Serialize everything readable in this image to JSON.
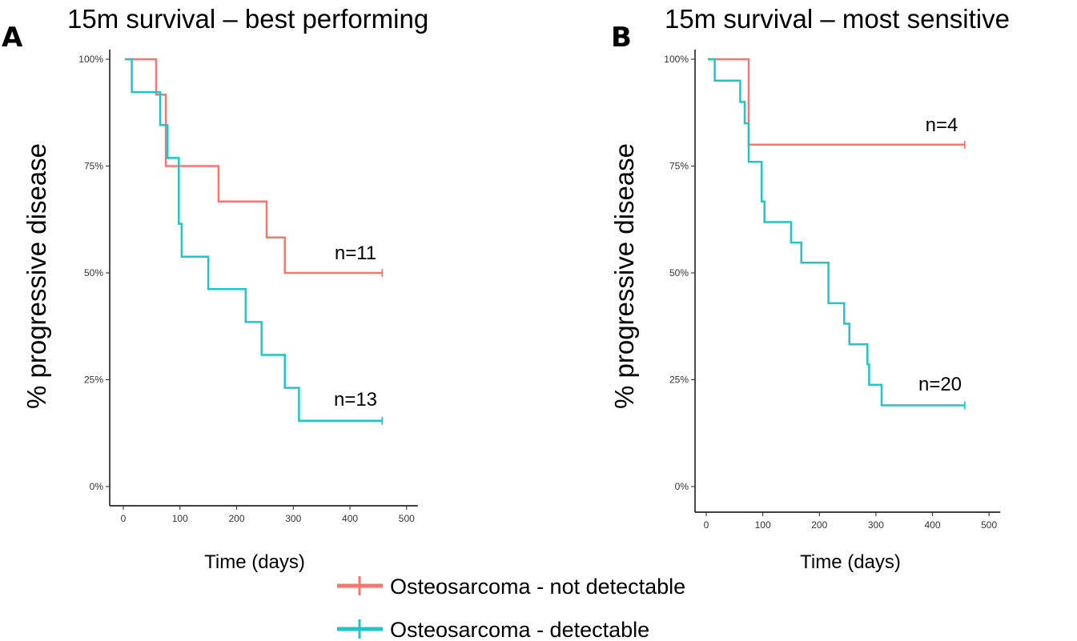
{
  "chart_data": [
    {
      "type": "line",
      "subtype": "kaplan-meier step",
      "panel": "A",
      "title": "15m survival – best performing",
      "xlabel": "Time (days)",
      "ylabel": "% progressive disease",
      "xlim": [
        0,
        500
      ],
      "ylim": [
        0,
        1
      ],
      "xticks": [
        0,
        100,
        200,
        300,
        400,
        500
      ],
      "yticks": [
        0,
        0.25,
        0.5,
        0.75,
        1.0
      ],
      "ytick_labels": [
        "0%",
        "25%",
        "50%",
        "75%",
        "100%"
      ],
      "grid": false,
      "series": [
        {
          "name": "Osteosarcoma - not detectable",
          "color": "#F8766D",
          "n_label": "n=11",
          "steps": [
            [
              3,
              1.0
            ],
            [
              58,
              1.0
            ],
            [
              58,
              0.917
            ],
            [
              75,
              0.917
            ],
            [
              75,
              0.75
            ],
            [
              168,
              0.75
            ],
            [
              168,
              0.667
            ],
            [
              253,
              0.667
            ],
            [
              253,
              0.583
            ],
            [
              285,
              0.583
            ],
            [
              285,
              0.5
            ],
            [
              457,
              0.5
            ]
          ],
          "censor_x": [
            457
          ],
          "censor_y": [
            0.5
          ]
        },
        {
          "name": "Osteosarcoma - detectable",
          "color": "#1EC6C6",
          "n_label": "n=13",
          "steps": [
            [
              3,
              1.0
            ],
            [
              15,
              1.0
            ],
            [
              15,
              0.923
            ],
            [
              65,
              0.923
            ],
            [
              65,
              0.846
            ],
            [
              78,
              0.846
            ],
            [
              78,
              0.769
            ],
            [
              98,
              0.769
            ],
            [
              98,
              0.615
            ],
            [
              103,
              0.615
            ],
            [
              103,
              0.538
            ],
            [
              150,
              0.538
            ],
            [
              150,
              0.462
            ],
            [
              216,
              0.462
            ],
            [
              216,
              0.385
            ],
            [
              244,
              0.385
            ],
            [
              244,
              0.308
            ],
            [
              285,
              0.308
            ],
            [
              285,
              0.231
            ],
            [
              310,
              0.231
            ],
            [
              310,
              0.154
            ],
            [
              457,
              0.154
            ]
          ],
          "censor_x": [
            457
          ],
          "censor_y": [
            0.154
          ]
        }
      ]
    },
    {
      "type": "line",
      "subtype": "kaplan-meier step",
      "panel": "B",
      "title": "15m survival – most sensitive",
      "xlabel": "Time (days)",
      "ylabel": "% progressive disease",
      "xlim": [
        0,
        500
      ],
      "ylim": [
        0,
        1
      ],
      "xticks": [
        0,
        100,
        200,
        300,
        400,
        500
      ],
      "yticks": [
        0,
        0.25,
        0.5,
        0.75,
        1.0
      ],
      "ytick_labels": [
        "0%",
        "25%",
        "50%",
        "75%",
        "100%"
      ],
      "grid": false,
      "series": [
        {
          "name": "Osteosarcoma - not detectable",
          "color": "#F8766D",
          "n_label": "n=4",
          "steps": [
            [
              3,
              1.0
            ],
            [
              75,
              1.0
            ],
            [
              75,
              0.8
            ],
            [
              457,
              0.8
            ]
          ],
          "censor_x": [
            457
          ],
          "censor_y": [
            0.8
          ]
        },
        {
          "name": "Osteosarcoma - detectable",
          "color": "#1EC6C6",
          "n_label": "n=20",
          "steps": [
            [
              3,
              1.0
            ],
            [
              15,
              1.0
            ],
            [
              15,
              0.95
            ],
            [
              60,
              0.95
            ],
            [
              60,
              0.9
            ],
            [
              68,
              0.9
            ],
            [
              68,
              0.85
            ],
            [
              75,
              0.85
            ],
            [
              75,
              0.76
            ],
            [
              98,
              0.76
            ],
            [
              98,
              0.667
            ],
            [
              103,
              0.667
            ],
            [
              103,
              0.619
            ],
            [
              150,
              0.619
            ],
            [
              150,
              0.571
            ],
            [
              168,
              0.571
            ],
            [
              168,
              0.524
            ],
            [
              216,
              0.524
            ],
            [
              216,
              0.429
            ],
            [
              244,
              0.429
            ],
            [
              244,
              0.381
            ],
            [
              253,
              0.381
            ],
            [
              253,
              0.333
            ],
            [
              285,
              0.333
            ],
            [
              285,
              0.286
            ],
            [
              288,
              0.286
            ],
            [
              288,
              0.238
            ],
            [
              310,
              0.238
            ],
            [
              310,
              0.19
            ],
            [
              457,
              0.19
            ]
          ],
          "censor_x": [
            457
          ],
          "censor_y": [
            0.19
          ]
        }
      ]
    }
  ],
  "legend": {
    "placement": "bottom-center",
    "items": [
      {
        "label": "Osteosarcoma - not detectable",
        "color": "#F8766D"
      },
      {
        "label": "Osteosarcoma - detectable",
        "color": "#1EC6C6"
      }
    ]
  }
}
